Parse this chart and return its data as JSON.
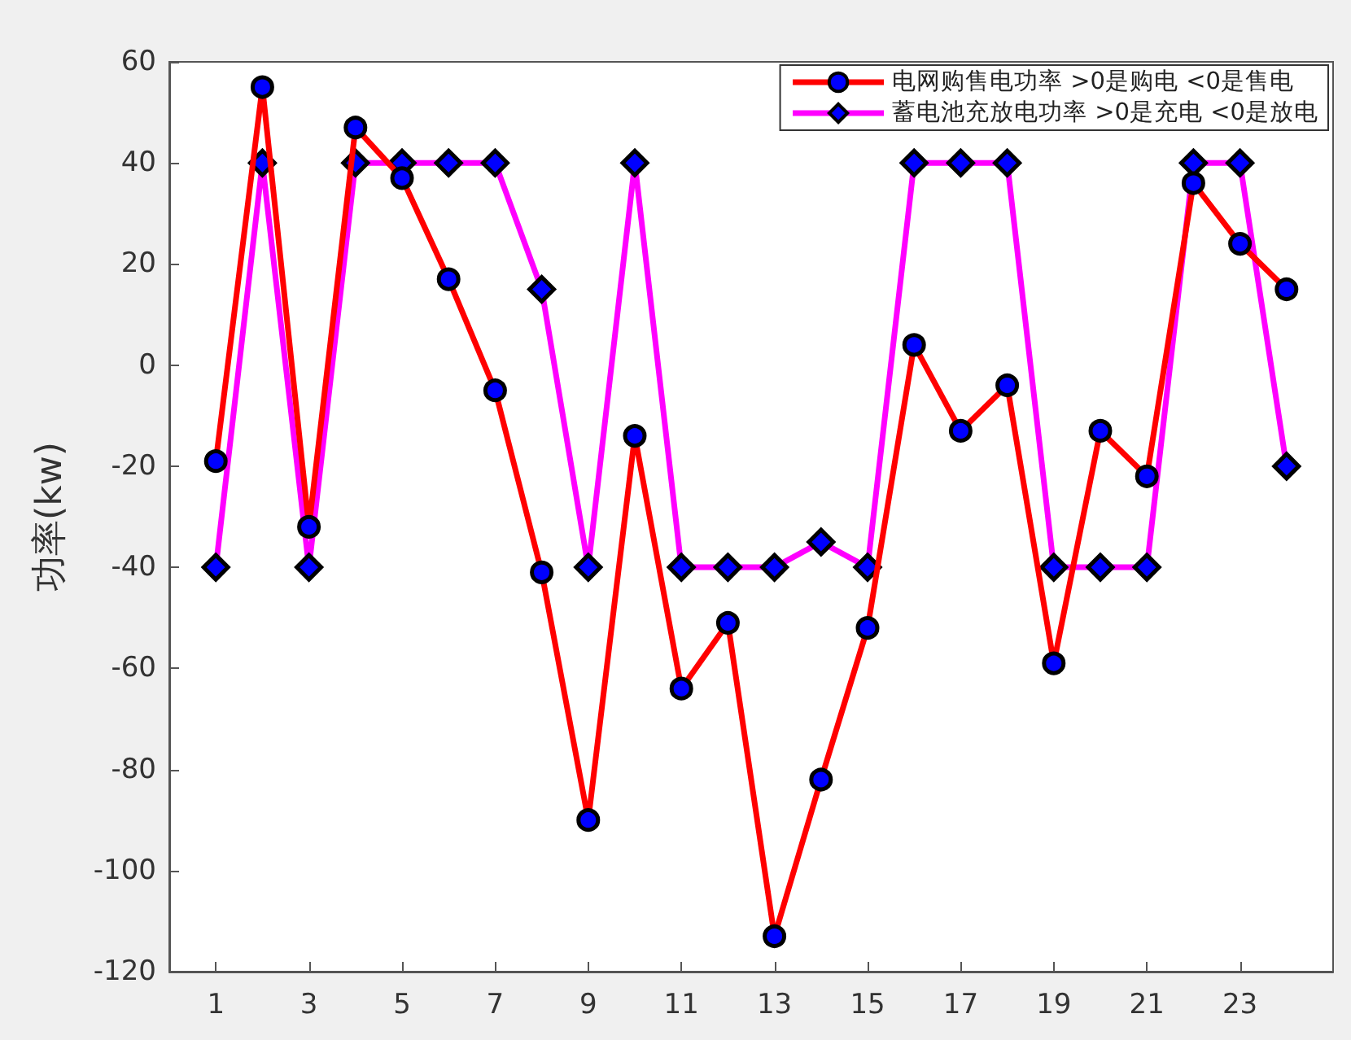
{
  "chart_data": {
    "type": "line",
    "ylabel": "功率(kw)",
    "x": [
      1,
      2,
      3,
      4,
      5,
      6,
      7,
      8,
      9,
      10,
      11,
      12,
      13,
      14,
      15,
      16,
      17,
      18,
      19,
      20,
      21,
      22,
      23,
      24
    ],
    "series": [
      {
        "name": "电网购售电功率 >0是购电 <0是售电",
        "color": "#ff0000",
        "marker": "circle",
        "values": [
          -19,
          55,
          -32,
          47,
          37,
          17,
          -5,
          -41,
          -90,
          -14,
          -64,
          -51,
          -113,
          -82,
          -52,
          4,
          -13,
          -4,
          -59,
          -13,
          -22,
          36,
          24,
          15
        ]
      },
      {
        "name": "蓄电池充放电功率 >0是充电 <0是放电",
        "color": "#ff00ff",
        "marker": "diamond",
        "values": [
          -40,
          40,
          -40,
          40,
          40,
          40,
          40,
          15,
          -40,
          40,
          -40,
          -40,
          -40,
          -35,
          -40,
          40,
          40,
          40,
          -40,
          -40,
          -40,
          40,
          40,
          -20
        ]
      }
    ],
    "xlim": [
      0,
      25
    ],
    "xticks": [
      1,
      3,
      5,
      7,
      9,
      11,
      13,
      15,
      17,
      19,
      21,
      23
    ],
    "ylim": [
      -120,
      60
    ],
    "yticks": [
      -120,
      -100,
      -80,
      -60,
      -40,
      -20,
      0,
      20,
      40,
      60
    ],
    "grid": false,
    "legend": "top right",
    "line_style": "solid"
  }
}
